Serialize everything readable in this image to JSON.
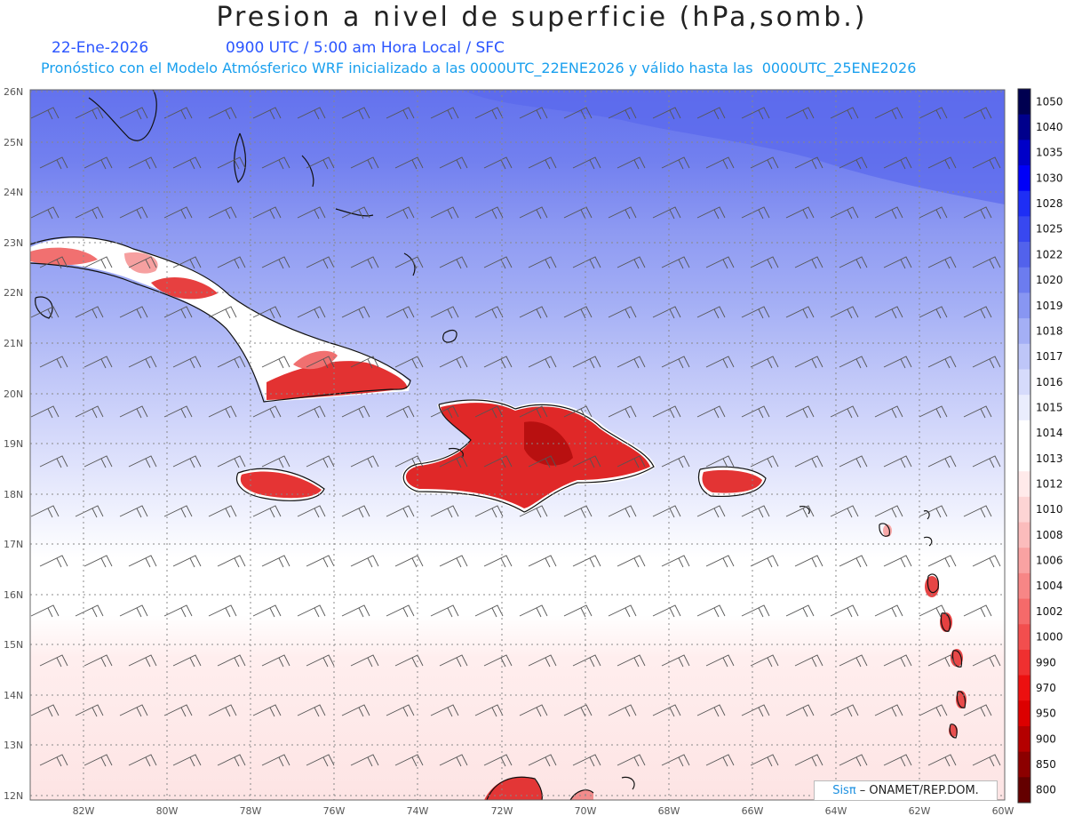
{
  "header": {
    "title": "Presion a nivel de superficie (hPa,somb.)",
    "date": "22-Ene-2026",
    "time_info": "0900 UTC / 5:00 am Hora Local / SFC",
    "model_info": "Pronóstico con el Modelo Atmósferico WRF inicializado a las 0000UTC_22ENE2026 y válido hasta las  0000UTC_25ENE2026"
  },
  "axes": {
    "lat_labels": [
      "26N",
      "25N",
      "24N",
      "23N",
      "22N",
      "21N",
      "20N",
      "19N",
      "18N",
      "17N",
      "16N",
      "15N",
      "14N",
      "13N",
      "12N"
    ],
    "lon_labels": [
      "82W",
      "80W",
      "78W",
      "76W",
      "74W",
      "72W",
      "70W",
      "68W",
      "66W",
      "64W",
      "62W",
      "60W"
    ]
  },
  "colorbar": {
    "levels": [
      "1050",
      "1040",
      "1035",
      "1030",
      "1028",
      "1025",
      "1022",
      "1020",
      "1019",
      "1018",
      "1017",
      "1016",
      "1015",
      "1014",
      "1013",
      "1012",
      "1010",
      "1008",
      "1006",
      "1004",
      "1002",
      "1000",
      "990",
      "970",
      "950",
      "900",
      "850",
      "800"
    ],
    "colors": [
      "#000050",
      "#00008c",
      "#0000c8",
      "#0000f8",
      "#1e2ef5",
      "#3848f0",
      "#5262ec",
      "#6c7cef",
      "#8896f2",
      "#a4afF5",
      "#bec6f8",
      "#d6dbfb",
      "#eaedfd",
      "#ffffff",
      "#ffffff",
      "#ffeaea",
      "#fdd4d4",
      "#fbbcbc",
      "#f9a2a2",
      "#f78686",
      "#f56a6a",
      "#f24e4e",
      "#ef3030",
      "#ec1010",
      "#dc0000",
      "#b40000",
      "#8c0000",
      "#640000"
    ]
  },
  "credit": {
    "brand": "Sisπ",
    "text": " – ONAMET/REP.DOM."
  }
}
